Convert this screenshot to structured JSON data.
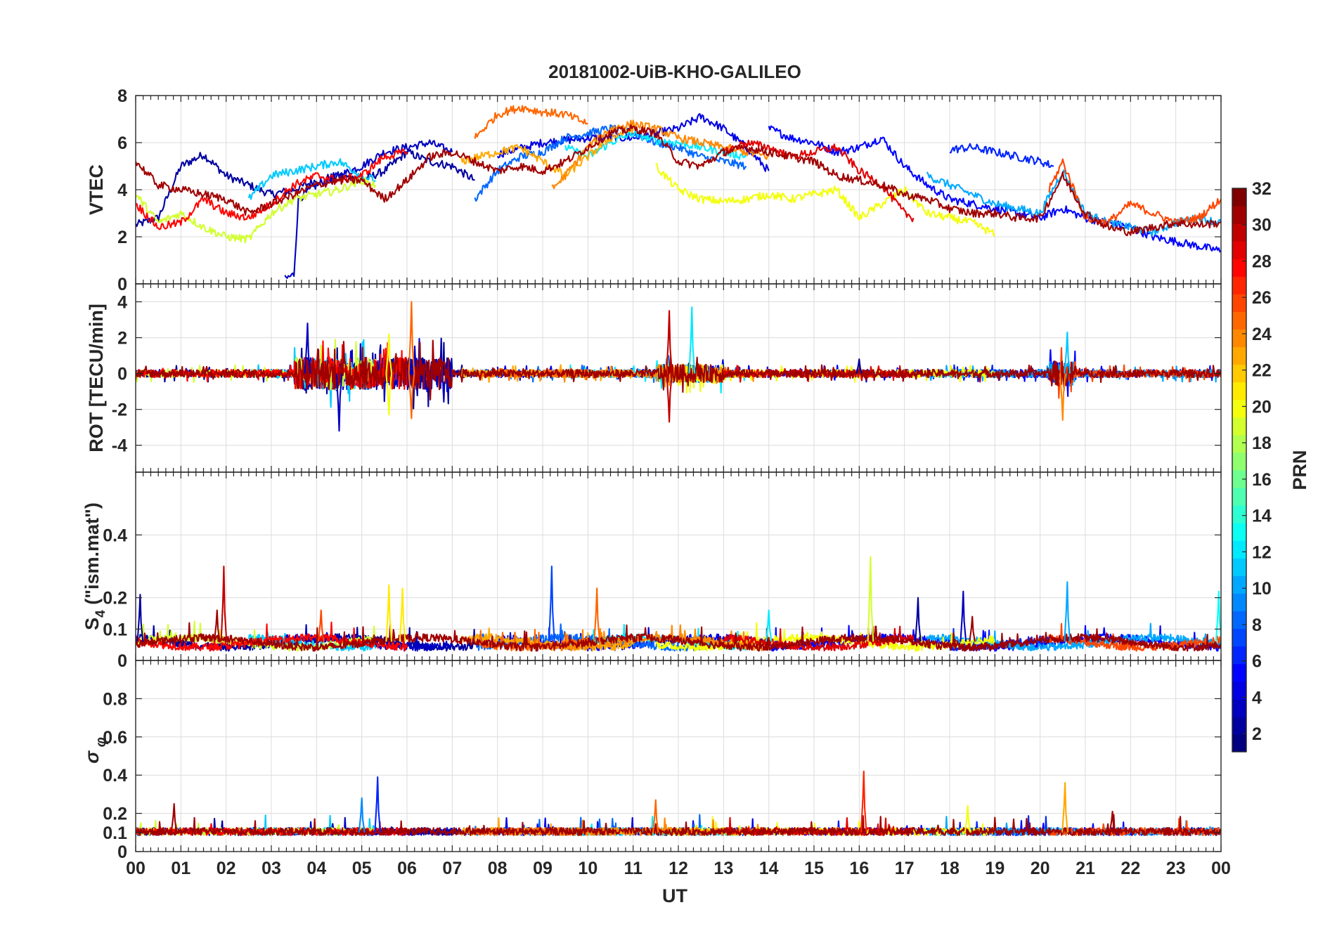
{
  "chart_data": {
    "type": "line",
    "title": "20181002-UiB-KHO-GALILEO",
    "xlabel": "UT",
    "x_ticks": [
      "00",
      "01",
      "02",
      "03",
      "04",
      "05",
      "06",
      "07",
      "08",
      "09",
      "10",
      "11",
      "12",
      "13",
      "14",
      "15",
      "16",
      "17",
      "18",
      "19",
      "20",
      "21",
      "22",
      "23",
      "00"
    ],
    "xlim": [
      0,
      24
    ],
    "colorbar": {
      "label": "PRN",
      "range": [
        1,
        32
      ],
      "ticks": [
        "2",
        "4",
        "6",
        "8",
        "10",
        "12",
        "14",
        "16",
        "18",
        "20",
        "22",
        "24",
        "26",
        "28",
        "30",
        "32"
      ],
      "colormap": "jet"
    },
    "panels": [
      {
        "ylabel": "VTEC",
        "ylim": [
          0,
          8
        ],
        "y_ticks": [
          "0",
          "2",
          "4",
          "6",
          "8"
        ],
        "series": [
          {
            "prn": 2,
            "x": [
              0,
              0.5,
              1,
              1.5,
              2,
              2.5,
              3,
              3.5,
              4,
              4.5,
              5,
              5.5,
              6,
              6.5,
              7,
              7.5
            ],
            "y": [
              2.5,
              2.8,
              5.0,
              5.5,
              4.6,
              4.2,
              3.8,
              4.0,
              4.4,
              4.6,
              4.4,
              4.8,
              5.6,
              5.2,
              5.0,
              4.4
            ]
          },
          {
            "prn": 3,
            "x": [
              3.3,
              3.5,
              3.6,
              4,
              4.5,
              5,
              5.5,
              6,
              6.5,
              7
            ],
            "y": [
              0.2,
              0.4,
              3.6,
              4.2,
              4.6,
              5.0,
              5.6,
              5.8,
              6.0,
              5.6
            ]
          },
          {
            "prn": 4,
            "x": [
              8,
              9,
              10,
              11,
              12,
              12.5,
              13,
              13.5,
              14
            ],
            "y": [
              5.5,
              6.0,
              6.2,
              6.2,
              6.6,
              7.1,
              6.6,
              5.8,
              4.8
            ]
          },
          {
            "prn": 5,
            "x": [
              14,
              14.5,
              15,
              15.5,
              16,
              16.5,
              17,
              17.5,
              18,
              18.5,
              19,
              19.5,
              20,
              20.5,
              21,
              21.5,
              22,
              22.5,
              23,
              23.5,
              24
            ],
            "y": [
              6.6,
              6.2,
              6.0,
              5.6,
              5.8,
              6.2,
              5.0,
              4.2,
              3.6,
              3.4,
              3.2,
              3.0,
              2.8,
              3.2,
              2.8,
              2.6,
              2.4,
              2.0,
              1.8,
              1.6,
              1.4
            ]
          },
          {
            "prn": 6,
            "x": [
              18,
              18.5,
              19,
              19.5,
              20,
              20.3
            ],
            "y": [
              5.7,
              5.8,
              5.6,
              5.4,
              5.2,
              5.0
            ]
          },
          {
            "prn": 8,
            "x": [
              7.5,
              8,
              8.5,
              9,
              9.5,
              10,
              10.5,
              11,
              11.5,
              12,
              12.5,
              13,
              13.5
            ],
            "y": [
              3.6,
              4.8,
              5.4,
              5.6,
              6.2,
              6.4,
              6.6,
              6.4,
              6.0,
              5.8,
              5.4,
              5.2,
              5.0
            ]
          },
          {
            "prn": 10,
            "x": [
              17.5,
              18,
              18.5,
              19,
              19.5,
              20,
              20.5,
              21,
              21.5,
              22,
              22.5,
              23,
              23.5,
              24
            ],
            "y": [
              4.6,
              4.2,
              3.8,
              3.4,
              3.2,
              3.0,
              4.8,
              3.0,
              2.6,
              2.4,
              2.2,
              2.6,
              2.8,
              2.6
            ]
          },
          {
            "prn": 11,
            "x": [
              2.5,
              3,
              3.5,
              4,
              4.5,
              5,
              5.3
            ],
            "y": [
              3.6,
              4.6,
              4.8,
              5.0,
              5.2,
              4.6,
              4.4
            ]
          },
          {
            "prn": 12,
            "x": [
              9.5,
              10,
              10.5,
              11,
              11.5,
              12,
              12.5,
              13,
              13.5
            ],
            "y": [
              5.8,
              5.4,
              6.0,
              6.4,
              6.1,
              6.0,
              5.8,
              5.6,
              5.4
            ]
          },
          {
            "prn": 19,
            "x": [
              0,
              0.5,
              1,
              1.5,
              2,
              2.5,
              3,
              3.5,
              4,
              4.5,
              5,
              5.3
            ],
            "y": [
              3.8,
              2.6,
              3.0,
              2.4,
              2.0,
              1.9,
              3.0,
              3.6,
              3.8,
              4.0,
              4.4,
              4.2
            ]
          },
          {
            "prn": 20,
            "x": [
              11.5,
              12,
              12.5,
              13,
              13.5,
              14,
              14.5,
              15,
              15.5,
              16,
              16.5,
              17,
              17.5,
              18,
              18.5,
              19
            ],
            "y": [
              5.0,
              4.0,
              3.6,
              3.5,
              3.6,
              3.8,
              3.6,
              3.8,
              4.0,
              2.8,
              3.4,
              4.0,
              3.0,
              2.8,
              2.6,
              2.1
            ]
          },
          {
            "prn": 23,
            "x": [
              7.2,
              8,
              8.5,
              9,
              9.5,
              10,
              10.5,
              11
            ],
            "y": [
              5.2,
              5.6,
              5.8,
              5.2,
              4.6,
              5.4,
              6.2,
              6.6
            ]
          },
          {
            "prn": 24,
            "x": [
              9.2,
              9.5,
              10,
              10.5,
              11,
              11.5,
              12,
              12.5,
              13,
              13.5,
              14
            ],
            "y": [
              4.0,
              4.6,
              5.8,
              6.6,
              6.8,
              6.6,
              6.2,
              6.0,
              5.8,
              5.6,
              5.4
            ]
          },
          {
            "prn": 25,
            "x": [
              7.5,
              8,
              8.5,
              9,
              9.5,
              10
            ],
            "y": [
              6.2,
              7.2,
              7.5,
              7.3,
              7.2,
              6.8
            ]
          },
          {
            "prn": 26,
            "x": [
              20.2,
              20.5,
              21,
              21.5,
              22,
              22.5,
              23,
              23.5,
              24
            ],
            "y": [
              4.0,
              5.2,
              2.8,
              2.6,
              3.4,
              3.0,
              2.6,
              2.8,
              3.6
            ]
          },
          {
            "prn": 28,
            "x": [
              0,
              0.5,
              1,
              1.5,
              2,
              2.5,
              3,
              3.5,
              4,
              4.5,
              5,
              5.5,
              6
            ],
            "y": [
              3.4,
              2.4,
              2.6,
              3.6,
              3.0,
              2.8,
              3.4,
              4.2,
              4.6,
              4.4,
              4.6,
              5.4,
              5.6
            ]
          },
          {
            "prn": 29,
            "x": [
              13,
              13.5,
              14,
              14.5,
              15,
              15.5,
              16,
              16.5,
              17,
              17.2
            ],
            "y": [
              5.6,
              6.0,
              5.8,
              5.4,
              5.6,
              5.8,
              4.8,
              4.2,
              3.0,
              2.8
            ]
          },
          {
            "prn": 31,
            "x": [
              0,
              0.5,
              1,
              1.5,
              2,
              2.5,
              3,
              3.5,
              4,
              4.5,
              5,
              5.5,
              6,
              6.5,
              7,
              7.5,
              8,
              8.5,
              9,
              9.5,
              10,
              10.5,
              11,
              11.5,
              12,
              12.5,
              13,
              13.5,
              14,
              14.5,
              15,
              15.5,
              16,
              16.5,
              17,
              17.5,
              18,
              18.5,
              19,
              19.5,
              20,
              20.5,
              21,
              21.5,
              22,
              22.5,
              23,
              23.5,
              24
            ],
            "y": [
              5.2,
              4.2,
              4.0,
              3.8,
              3.6,
              3.0,
              3.4,
              3.8,
              4.2,
              4.4,
              4.4,
              3.6,
              4.4,
              5.4,
              5.6,
              5.2,
              4.8,
              5.0,
              4.8,
              5.2,
              5.8,
              6.4,
              6.6,
              6.4,
              5.2,
              5.0,
              5.6,
              5.8,
              5.6,
              5.4,
              5.2,
              4.6,
              4.4,
              4.2,
              3.8,
              3.6,
              3.2,
              3.0,
              3.0,
              2.8,
              2.8,
              4.6,
              3.0,
              2.4,
              2.2,
              2.4,
              2.6,
              2.5,
              2.6
            ]
          }
        ]
      },
      {
        "ylabel": "ROT [TECU/min]",
        "ylim": [
          -5.5,
          5
        ],
        "y_ticks": [
          "-4",
          "-2",
          "0",
          "2",
          "4"
        ],
        "spikes": [
          {
            "prn": 3,
            "x": 4.5,
            "y": -3.2
          },
          {
            "prn": 3,
            "x": 3.8,
            "y": 2.8
          },
          {
            "prn": 20,
            "x": 5.6,
            "y": -2.3
          },
          {
            "prn": 20,
            "x": 5.6,
            "y": 2.2
          },
          {
            "prn": 25,
            "x": 6.1,
            "y": 4.0
          },
          {
            "prn": 25,
            "x": 6.1,
            "y": -2.5
          },
          {
            "prn": 30,
            "x": 11.8,
            "y": 3.5
          },
          {
            "prn": 30,
            "x": 11.8,
            "y": -2.7
          },
          {
            "prn": 12,
            "x": 12.3,
            "y": 3.7
          },
          {
            "prn": 24,
            "x": 20.5,
            "y": -2.6
          },
          {
            "prn": 11,
            "x": 20.6,
            "y": 2.3
          },
          {
            "prn": 2,
            "x": 16.0,
            "y": 0.8
          }
        ]
      },
      {
        "ylabel": "S_4 (\"ism.mat\")",
        "ylim": [
          0,
          0.6
        ],
        "y_ticks": [
          "0",
          "0.1",
          "0.2",
          "0.4"
        ],
        "spikes": [
          {
            "prn": 30,
            "x": 1.95,
            "y": 0.3
          },
          {
            "prn": 31,
            "x": 1.8,
            "y": 0.16
          },
          {
            "prn": 26,
            "x": 4.1,
            "y": 0.16
          },
          {
            "prn": 21,
            "x": 5.6,
            "y": 0.24
          },
          {
            "prn": 21,
            "x": 5.9,
            "y": 0.23
          },
          {
            "prn": 7,
            "x": 9.2,
            "y": 0.3
          },
          {
            "prn": 25,
            "x": 10.2,
            "y": 0.23
          },
          {
            "prn": 19,
            "x": 16.25,
            "y": 0.33
          },
          {
            "prn": 3,
            "x": 18.3,
            "y": 0.22
          },
          {
            "prn": 31,
            "x": 18.5,
            "y": 0.14
          },
          {
            "prn": 10,
            "x": 20.6,
            "y": 0.25
          },
          {
            "prn": 12,
            "x": 14.0,
            "y": 0.16
          },
          {
            "prn": 2,
            "x": 17.3,
            "y": 0.2
          },
          {
            "prn": 2,
            "x": 0.1,
            "y": 0.21
          },
          {
            "prn": 13,
            "x": 23.95,
            "y": 0.22
          }
        ]
      },
      {
        "ylabel": "σ_φ",
        "ylim": [
          0,
          1
        ],
        "y_ticks": [
          "0",
          "0.1",
          "0.2",
          "0.4",
          "0.6",
          "0.8"
        ],
        "spikes": [
          {
            "prn": 6,
            "x": 5.35,
            "y": 0.39
          },
          {
            "prn": 9,
            "x": 5.0,
            "y": 0.28
          },
          {
            "prn": 27,
            "x": 16.1,
            "y": 0.42
          },
          {
            "prn": 23,
            "x": 20.55,
            "y": 0.36
          },
          {
            "prn": 25,
            "x": 11.5,
            "y": 0.27
          },
          {
            "prn": 31,
            "x": 0.85,
            "y": 0.25
          },
          {
            "prn": 31,
            "x": 21.6,
            "y": 0.21
          },
          {
            "prn": 20,
            "x": 18.4,
            "y": 0.24
          }
        ]
      }
    ]
  }
}
